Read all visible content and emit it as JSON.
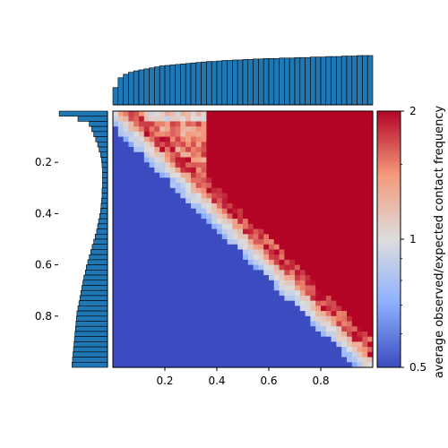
{
  "chart_data": {
    "type": "heatmap",
    "title": "",
    "xlabel": "",
    "ylabel": "",
    "x_range": [
      0.0,
      1.0
    ],
    "y_range": [
      0.0,
      1.0
    ],
    "y_inverted": true,
    "grid": false,
    "x_ticks": [
      0.2,
      0.4,
      0.6,
      0.8
    ],
    "y_ticks": [
      0.2,
      0.4,
      0.6,
      0.8
    ],
    "x_tick_labels": [
      "0.2",
      "0.4",
      "0.6",
      "0.8"
    ],
    "y_tick_labels": [
      "0.2",
      "0.4",
      "0.6",
      "0.8"
    ],
    "colorbar": {
      "label": "average observed/expected contact frequency",
      "scale": "log",
      "range": [
        0.5,
        2
      ],
      "ticks": [
        0.5,
        1,
        2
      ],
      "tick_labels": [
        "0.5",
        "1",
        "2"
      ],
      "colormap": "coolwarm",
      "colors": [
        "#3b4cc0",
        "#dddddd",
        "#b40426"
      ]
    },
    "marginal_color": "#1f77b4",
    "heatmap_regions": [
      {
        "region": "lower-right triangle (y > x)",
        "value": 0.5
      },
      {
        "region": "narrow band along diagonal",
        "value": 1.0
      },
      {
        "region": "broad region above diagonal",
        "value": 2.0
      },
      {
        "region": "upper-left corner (x < 0.35, y < 0.4)",
        "value": 1.4
      }
    ],
    "top_marginal": {
      "bins": 50,
      "values": [
        0.35,
        0.55,
        0.62,
        0.66,
        0.69,
        0.71,
        0.73,
        0.75,
        0.77,
        0.79,
        0.8,
        0.81,
        0.82,
        0.83,
        0.84,
        0.85,
        0.86,
        0.87,
        0.88,
        0.88,
        0.89,
        0.9,
        0.9,
        0.91,
        0.91,
        0.92,
        0.92,
        0.93,
        0.93,
        0.94,
        0.94,
        0.94,
        0.95,
        0.95,
        0.95,
        0.96,
        0.96,
        0.96,
        0.97,
        0.97,
        0.97,
        0.98,
        0.98,
        0.98,
        0.99,
        0.99,
        0.99,
        1.0,
        1.0,
        1.0
      ]
    },
    "left_marginal": {
      "bins": 50,
      "values": [
        0.98,
        0.6,
        0.37,
        0.32,
        0.28,
        0.24,
        0.2,
        0.17,
        0.14,
        0.12,
        0.11,
        0.1,
        0.1,
        0.1,
        0.1,
        0.11,
        0.11,
        0.12,
        0.13,
        0.14,
        0.16,
        0.18,
        0.2,
        0.22,
        0.25,
        0.28,
        0.31,
        0.34,
        0.37,
        0.4,
        0.43,
        0.45,
        0.48,
        0.5,
        0.52,
        0.54,
        0.56,
        0.58,
        0.6,
        0.62,
        0.63,
        0.64,
        0.65,
        0.66,
        0.67,
        0.68,
        0.69,
        0.7,
        0.71,
        0.72
      ]
    }
  }
}
